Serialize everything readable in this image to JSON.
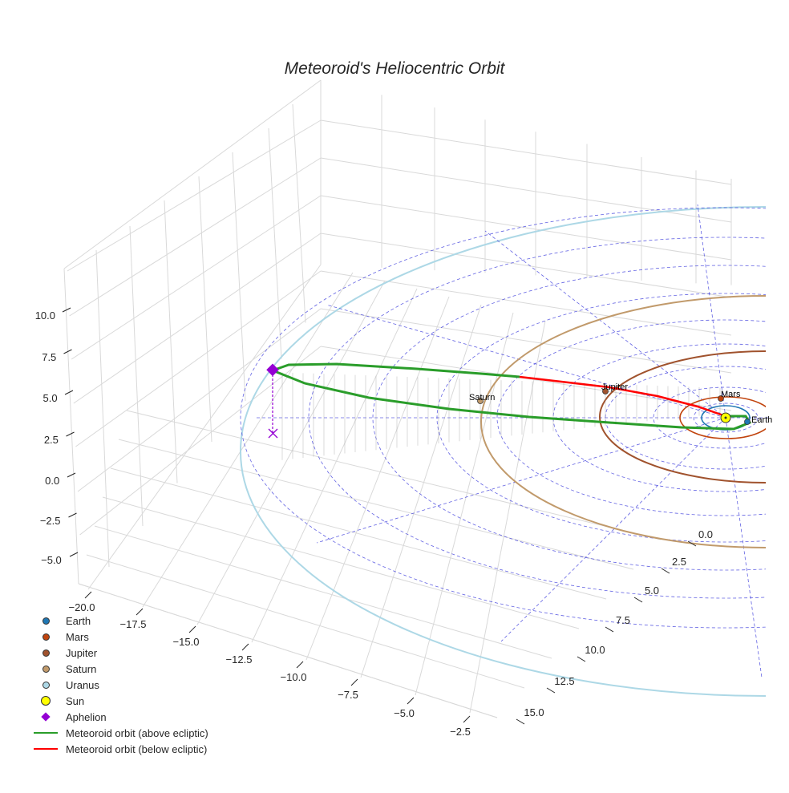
{
  "chart_data": {
    "type": "line3d",
    "title": "Meteoroid's Heliocentric Orbit",
    "x_ticks": [
      "−20.0",
      "−17.5",
      "−15.0",
      "−12.5",
      "−10.0",
      "−7.5",
      "−5.0",
      "−2.5"
    ],
    "y_ticks": [
      "0.0",
      "2.5",
      "5.0",
      "7.5",
      "10.0",
      "12.5",
      "15.0"
    ],
    "z_ticks": [
      "10.0",
      "7.5",
      "5.0",
      "2.5",
      "0.0",
      "−2.5",
      "−5.0"
    ],
    "planets": [
      {
        "name": "Earth",
        "label": "Earth",
        "orbit_radius_au": 1.0,
        "color": "#1f77b4"
      },
      {
        "name": "Mars",
        "label": "Mars",
        "orbit_radius_au": 1.52,
        "color": "#c1440e"
      },
      {
        "name": "Jupiter",
        "label": "Jupiter",
        "orbit_radius_au": 5.2,
        "color": "#a0522d"
      },
      {
        "name": "Saturn",
        "label": "Saturn",
        "orbit_radius_au": 9.58,
        "color": "#c19a6b"
      },
      {
        "name": "Uranus",
        "label": "",
        "orbit_radius_au": 19.2,
        "color": "#add8e6"
      }
    ],
    "sun": {
      "name": "Sun",
      "color": "#ffff00"
    },
    "meteoroid_orbit": {
      "aphelion_au": [
        -19.5,
        0.0,
        4.7
      ],
      "above_color": "#2a9d2a",
      "below_color": "#ff0000"
    },
    "legend": [
      {
        "label": "Earth",
        "kind": "dot",
        "color": "#1f77b4"
      },
      {
        "label": "Mars",
        "kind": "dot",
        "color": "#c1440e"
      },
      {
        "label": "Jupiter",
        "kind": "dot",
        "color": "#a0522d"
      },
      {
        "label": "Saturn",
        "kind": "dot",
        "color": "#c19a6b"
      },
      {
        "label": "Uranus",
        "kind": "dot",
        "color": "#add8e6"
      },
      {
        "label": "Sun",
        "kind": "sun",
        "color": "#ffff00"
      },
      {
        "label": "Aphelion",
        "kind": "diamond",
        "color": "#9400d3"
      },
      {
        "label": "Meteoroid orbit (above ecliptic)",
        "kind": "line",
        "color": "#2a9d2a"
      },
      {
        "label": "Meteoroid orbit (below ecliptic)",
        "kind": "line",
        "color": "#ff0000"
      }
    ]
  }
}
